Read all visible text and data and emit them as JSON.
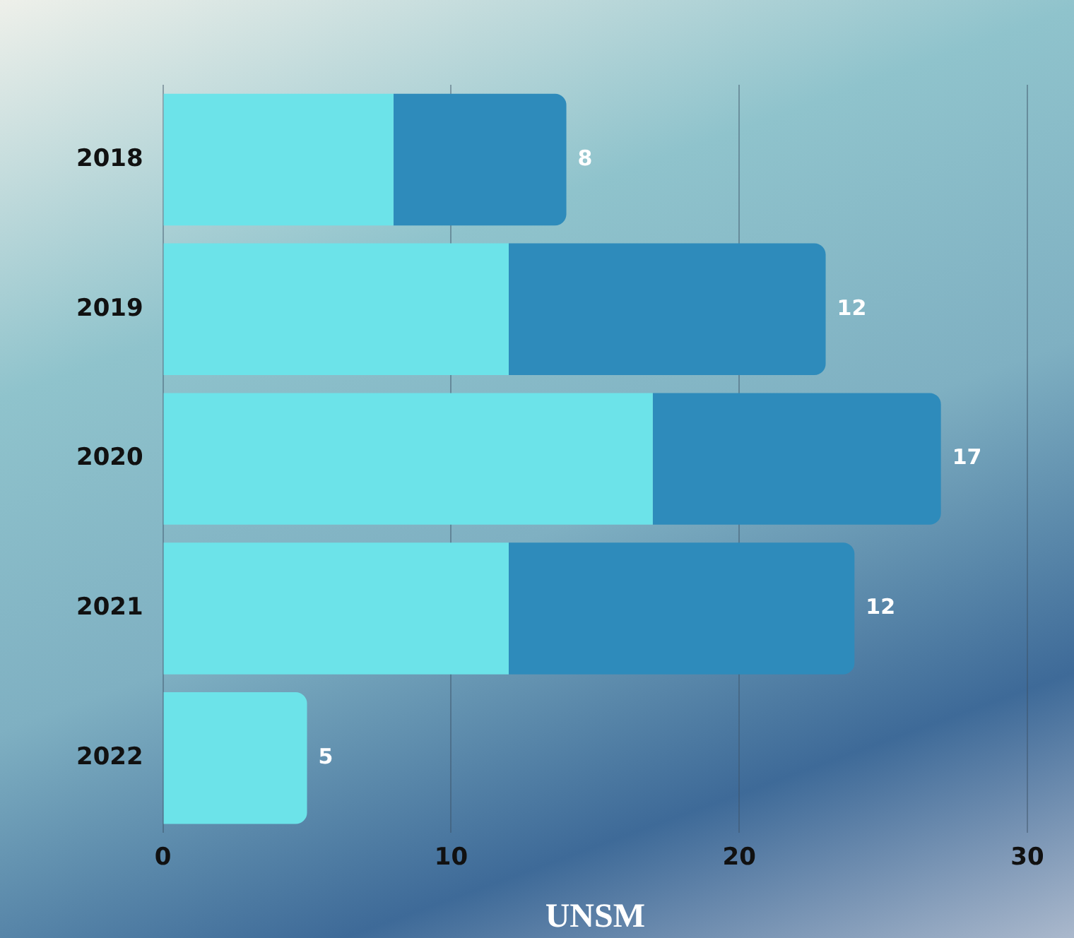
{
  "chart_data": {
    "type": "bar",
    "orientation": "horizontal",
    "stacked": true,
    "xlabel": "UNSM",
    "categories": [
      "2018",
      "2019",
      "2020",
      "2021",
      "2022"
    ],
    "series": [
      {
        "color": "#6ce3e9",
        "values": [
          8,
          12,
          17,
          12,
          5
        ]
      },
      {
        "color": "#2e8bbb",
        "values": [
          6,
          11,
          10,
          12,
          null
        ]
      }
    ],
    "annotations": [
      {
        "text": "8",
        "x": 14,
        "y": "2018"
      },
      {
        "text": "12",
        "x": 23,
        "y": "2019"
      },
      {
        "text": "17",
        "x": 27,
        "y": "2020"
      },
      {
        "text": "12",
        "x": 24,
        "y": "2021"
      },
      {
        "text": "5",
        "x": 5,
        "y": "2022"
      }
    ],
    "xlim": [
      0,
      30
    ],
    "xticks": [
      0,
      10,
      20,
      30
    ],
    "grid": "x",
    "legend": false
  }
}
